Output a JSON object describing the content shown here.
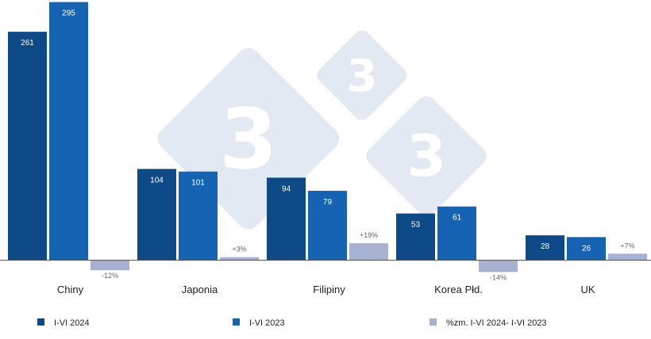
{
  "chart_data": {
    "type": "bar",
    "categories": [
      "Chiny",
      "Japonia",
      "Filipiny",
      "Korea Płd.",
      "UK"
    ],
    "series": [
      {
        "name": "I-VI 2024",
        "values": [
          261,
          104,
          94,
          53,
          28
        ],
        "labels": [
          "261",
          "104",
          "94",
          "53",
          "28"
        ]
      },
      {
        "name": "I-VI 2023",
        "values": [
          295,
          101,
          79,
          61,
          26
        ],
        "labels": [
          "295",
          "101",
          "79",
          "61",
          "26"
        ]
      },
      {
        "name": "%zm. I-VI 2024- I-VI 2023",
        "values": [
          -12,
          3,
          19,
          -14,
          7
        ],
        "labels": [
          "-12%",
          "+3%",
          "+19%",
          "-14%",
          "+7%"
        ]
      }
    ],
    "title": "",
    "xlabel": "",
    "ylabel": "",
    "ylim": [
      -15,
      300
    ],
    "grid": false,
    "legend_position": "bottom"
  },
  "colors": {
    "series_2024": "#0d4a87",
    "series_2023": "#1763b3",
    "series_pct": "#a7b1d1",
    "axis": "#555555",
    "watermark": "#e3e9f3"
  },
  "watermark": {
    "logo_text": "333",
    "icon": "333-logo-icon"
  }
}
